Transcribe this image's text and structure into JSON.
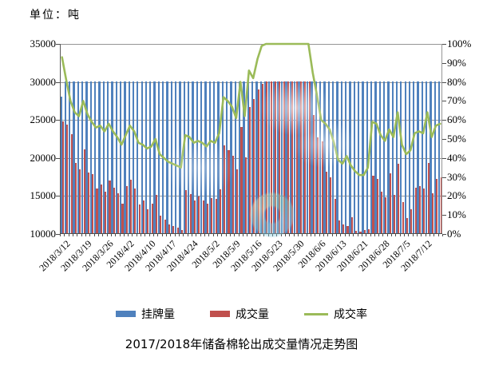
{
  "unit_label": "单位：吨",
  "title": "2017/2018年储备棉轮出成交量情况走势图",
  "legend": [
    {
      "label": "挂牌量",
      "type": "bar",
      "color": "#4F81BD"
    },
    {
      "label": "成交量",
      "type": "bar",
      "color": "#C0504D"
    },
    {
      "label": "成交率",
      "type": "line",
      "color": "#9BBB59"
    }
  ],
  "chart_data": {
    "type": "bar+line",
    "title": "2017/2018年储备棉轮出成交量情况走势图",
    "unit": "吨",
    "grid": true,
    "legend_position": "bottom",
    "x_tick_labels": [
      "2018/3/12",
      "2018/3/19",
      "2018/3/26",
      "2018/4/2",
      "2018/4/10",
      "2018/4/17",
      "2018/4/24",
      "2018/5/2",
      "2018/5/9",
      "2018/5/16",
      "2018/5/23",
      "2018/5/30",
      "2018/6/6",
      "2018/6/13",
      "2018/6/21",
      "2018/6/28",
      "2018/7/5",
      "2018/7/12"
    ],
    "x_ticks_every_n_points": 5,
    "left_axis": {
      "label": "吨",
      "min": 10000,
      "max": 35000,
      "step": 5000,
      "tick_labels": [
        "35000",
        "30000",
        "25000",
        "20000",
        "15000",
        "10000"
      ],
      "tick_values": [
        35000,
        30000,
        25000,
        20000,
        15000,
        10000
      ]
    },
    "right_axis": {
      "label": "%",
      "min": 0,
      "max": 100,
      "step": 10,
      "tick_labels": [
        "100%",
        "90%",
        "80%",
        "70%",
        "60%",
        "50%",
        "40%",
        "30%",
        "20%",
        "10%",
        "0%"
      ],
      "tick_values": [
        100,
        90,
        80,
        70,
        60,
        50,
        40,
        30,
        20,
        10,
        0
      ]
    },
    "series": [
      {
        "name": "挂牌量",
        "type": "bar",
        "axis": "left",
        "color": "#4F81BD",
        "values": [
          28000,
          30000,
          30000,
          30000,
          30000,
          30000,
          30000,
          30000,
          30000,
          30000,
          30000,
          30000,
          30000,
          30000,
          30000,
          30000,
          30000,
          30000,
          30000,
          30000,
          30000,
          30000,
          30000,
          30000,
          30000,
          30000,
          30000,
          30000,
          30000,
          30000,
          30000,
          30000,
          30000,
          30000,
          30000,
          30000,
          30000,
          30000,
          30000,
          30000,
          30000,
          30000,
          30000,
          30000,
          30000,
          30000,
          30000,
          30000,
          30000,
          30000,
          30000,
          30000,
          30000,
          30000,
          30000,
          30000,
          30000,
          30000,
          30000,
          30000,
          30000,
          30000,
          30000,
          30000,
          30000,
          30000,
          30000,
          30000,
          30000,
          30000,
          30000,
          30000,
          30000,
          30000,
          30000,
          30000,
          30000,
          30000,
          30000,
          30000,
          30000,
          30000,
          30000,
          30000,
          30000,
          30000,
          30000,
          30000,
          30000,
          30000
        ]
      },
      {
        "name": "成交量",
        "type": "bar",
        "axis": "left",
        "color": "#C0504D",
        "values": [
          24700,
          24300,
          23000,
          19300,
          18400,
          21000,
          18000,
          17800,
          15900,
          16400,
          15500,
          16900,
          16000,
          15300,
          13900,
          16200,
          17000,
          15900,
          13800,
          14300,
          13200,
          13900,
          15000,
          12300,
          11800,
          11200,
          10900,
          10700,
          10400,
          15700,
          15200,
          14300,
          14800,
          14300,
          13900,
          14600,
          14500,
          15800,
          21600,
          20900,
          20200,
          18400,
          24000,
          20000,
          26600,
          27600,
          28900,
          29600,
          30000,
          30000,
          30000,
          30000,
          30000,
          30000,
          30000,
          30000,
          30000,
          30000,
          30000,
          25500,
          22600,
          22100,
          18100,
          17400,
          14500,
          11700,
          11200,
          11000,
          12100,
          10300,
          10200,
          10400,
          10500,
          17600,
          17100,
          15500,
          14700,
          17900,
          15000,
          19100,
          14100,
          12000,
          13200,
          16000,
          16200,
          15900,
          19300,
          15300,
          17100,
          17400
        ]
      },
      {
        "name": "成交率",
        "type": "line",
        "axis": "right",
        "unit": "%",
        "color": "#9BBB59",
        "values": [
          93,
          81,
          70,
          64,
          62,
          70,
          63,
          59,
          56,
          57,
          54,
          58,
          54,
          51,
          47,
          52,
          57,
          54,
          48,
          47,
          45,
          46,
          50,
          42,
          40,
          38,
          37,
          36,
          35,
          52,
          51,
          48,
          49,
          48,
          46,
          49,
          48,
          53,
          72,
          70,
          67,
          61,
          80,
          62,
          86,
          82,
          92,
          99,
          100,
          100,
          100,
          100,
          100,
          100,
          100,
          100,
          100,
          100,
          100,
          85,
          73,
          60,
          58,
          55,
          48,
          39,
          37,
          41,
          36,
          33,
          31,
          31,
          35,
          59,
          58,
          52,
          49,
          55,
          51,
          64,
          47,
          42,
          44,
          53,
          54,
          53,
          64,
          51,
          57,
          58
        ]
      }
    ]
  }
}
